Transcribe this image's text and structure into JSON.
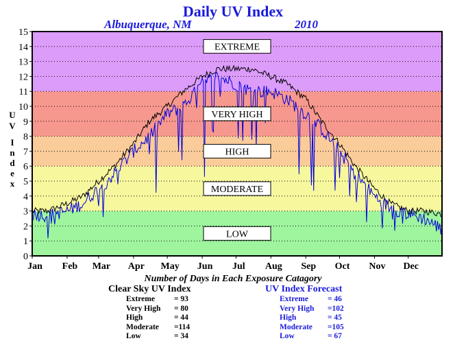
{
  "chart_data": {
    "type": "line",
    "title": "Daily UV Index",
    "location": "Albuquerque, NM",
    "year": "2010",
    "ylabel": "UV Index",
    "ylim": [
      0,
      15
    ],
    "yticks": [
      "0",
      "1",
      "2",
      "3",
      "4",
      "5",
      "6",
      "7",
      "8",
      "9",
      "10",
      "11",
      "12",
      "13",
      "14",
      "15"
    ],
    "months": [
      "Jan",
      "Feb",
      "Mar",
      "Apr",
      "May",
      "Jun",
      "Jul",
      "Aug",
      "Sep",
      "Oct",
      "Nov",
      "Dec"
    ],
    "month_start_days": [
      1,
      32,
      60,
      91,
      121,
      152,
      182,
      213,
      244,
      274,
      305,
      335
    ],
    "grid": "horizontal dotted",
    "bands": [
      {
        "label": "LOW",
        "from": 0,
        "to": 3,
        "color": "#9ef59e"
      },
      {
        "label": "MODERATE",
        "from": 3,
        "to": 6,
        "color": "#f7f79e"
      },
      {
        "label": "HIGH",
        "from": 6,
        "to": 8,
        "color": "#facc9a"
      },
      {
        "label": "VERY HIGH",
        "from": 8,
        "to": 11,
        "color": "#f7988e"
      },
      {
        "label": "EXTREME",
        "from": 11,
        "to": 15,
        "color": "#dc9cfa"
      }
    ],
    "series": [
      {
        "name": "Clear Sky UV Index",
        "color": "#000000",
        "x": [
          1,
          15,
          32,
          46,
          60,
          74,
          91,
          105,
          121,
          135,
          152,
          166,
          182,
          196,
          213,
          227,
          244,
          258,
          274,
          288,
          305,
          319,
          335,
          349,
          365
        ],
        "values": [
          3.0,
          3.0,
          3.5,
          4.0,
          5.0,
          6.0,
          7.5,
          9.0,
          10.0,
          11.0,
          12.0,
          12.5,
          12.5,
          12.5,
          12.0,
          11.5,
          10.5,
          9.0,
          7.5,
          6.0,
          4.5,
          3.5,
          3.0,
          3.0,
          2.8
        ]
      },
      {
        "name": "UV Index Forecast",
        "color": "#0000dd",
        "x": [
          1,
          15,
          32,
          46,
          60,
          74,
          91,
          105,
          121,
          135,
          152,
          166,
          182,
          196,
          213,
          227,
          244,
          258,
          274,
          288,
          305,
          319,
          335,
          349,
          365
        ],
        "values": [
          2.8,
          2.7,
          3.0,
          3.5,
          4.5,
          5.5,
          7.0,
          8.0,
          9.5,
          10.0,
          11.5,
          12.0,
          11.5,
          11.0,
          11.0,
          10.5,
          9.5,
          8.5,
          7.0,
          5.5,
          4.0,
          3.2,
          2.8,
          2.5,
          1.8
        ]
      }
    ]
  },
  "summary": {
    "title": "Number of Days in Each Exposure Catagory",
    "clear_sky": {
      "heading": "Clear Sky UV Index",
      "rows": [
        {
          "name": "Extreme",
          "value": "= 93"
        },
        {
          "name": "Very High",
          "value": "= 80"
        },
        {
          "name": "High",
          "value": "= 44"
        },
        {
          "name": "Moderate",
          "value": "=114"
        },
        {
          "name": "Low",
          "value": "= 34"
        }
      ]
    },
    "forecast": {
      "heading": "UV Index Forecast",
      "rows": [
        {
          "name": "Extreme",
          "value": "= 46"
        },
        {
          "name": "Very High",
          "value": "=102"
        },
        {
          "name": "High",
          "value": "= 45"
        },
        {
          "name": "Moderate",
          "value": "=105"
        },
        {
          "name": "Low",
          "value": "= 67"
        }
      ]
    }
  }
}
